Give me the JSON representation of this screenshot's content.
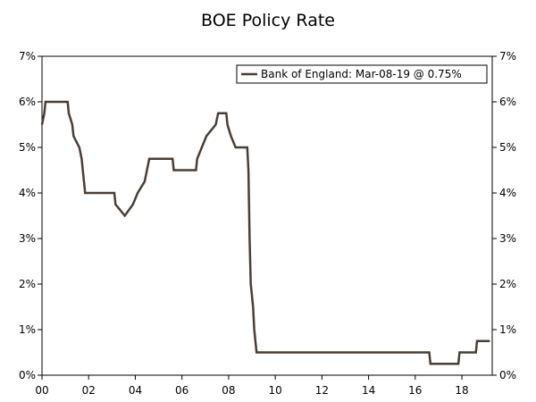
{
  "chart_data": {
    "type": "line",
    "title": "BOE Policy Rate",
    "xlabel": "",
    "ylabel": "",
    "x_ticks": [
      "00",
      "02",
      "04",
      "06",
      "08",
      "10",
      "12",
      "14",
      "16",
      "18"
    ],
    "y_ticks": [
      "0%",
      "1%",
      "2%",
      "3%",
      "4%",
      "5%",
      "6%",
      "7%"
    ],
    "xlim": [
      2000.0,
      2019.3
    ],
    "ylim": [
      0,
      7
    ],
    "grid": false,
    "legend_position": "top-right",
    "color": "#4a3e34",
    "series": [
      {
        "name": "Bank of England: Mar-08-19 @ 0.75%",
        "points": [
          [
            2000.0,
            5.5
          ],
          [
            2000.1,
            5.75
          ],
          [
            2000.15,
            6.0
          ],
          [
            2001.1,
            6.0
          ],
          [
            2001.15,
            5.75
          ],
          [
            2001.3,
            5.5
          ],
          [
            2001.35,
            5.25
          ],
          [
            2001.6,
            5.0
          ],
          [
            2001.7,
            4.75
          ],
          [
            2001.75,
            4.5
          ],
          [
            2001.85,
            4.0
          ],
          [
            2003.1,
            4.0
          ],
          [
            2003.15,
            3.75
          ],
          [
            2003.55,
            3.5
          ],
          [
            2003.9,
            3.75
          ],
          [
            2004.1,
            4.0
          ],
          [
            2004.4,
            4.25
          ],
          [
            2004.5,
            4.5
          ],
          [
            2004.6,
            4.75
          ],
          [
            2005.6,
            4.75
          ],
          [
            2005.65,
            4.5
          ],
          [
            2006.6,
            4.5
          ],
          [
            2006.65,
            4.75
          ],
          [
            2006.85,
            5.0
          ],
          [
            2007.05,
            5.25
          ],
          [
            2007.45,
            5.5
          ],
          [
            2007.55,
            5.75
          ],
          [
            2007.9,
            5.75
          ],
          [
            2007.95,
            5.5
          ],
          [
            2008.1,
            5.25
          ],
          [
            2008.3,
            5.0
          ],
          [
            2008.8,
            5.0
          ],
          [
            2008.85,
            4.5
          ],
          [
            2008.9,
            3.0
          ],
          [
            2008.95,
            2.0
          ],
          [
            2009.05,
            1.5
          ],
          [
            2009.1,
            1.0
          ],
          [
            2009.2,
            0.5
          ],
          [
            2016.6,
            0.5
          ],
          [
            2016.65,
            0.25
          ],
          [
            2017.85,
            0.25
          ],
          [
            2017.9,
            0.5
          ],
          [
            2018.6,
            0.5
          ],
          [
            2018.65,
            0.75
          ],
          [
            2019.2,
            0.75
          ]
        ]
      }
    ]
  }
}
